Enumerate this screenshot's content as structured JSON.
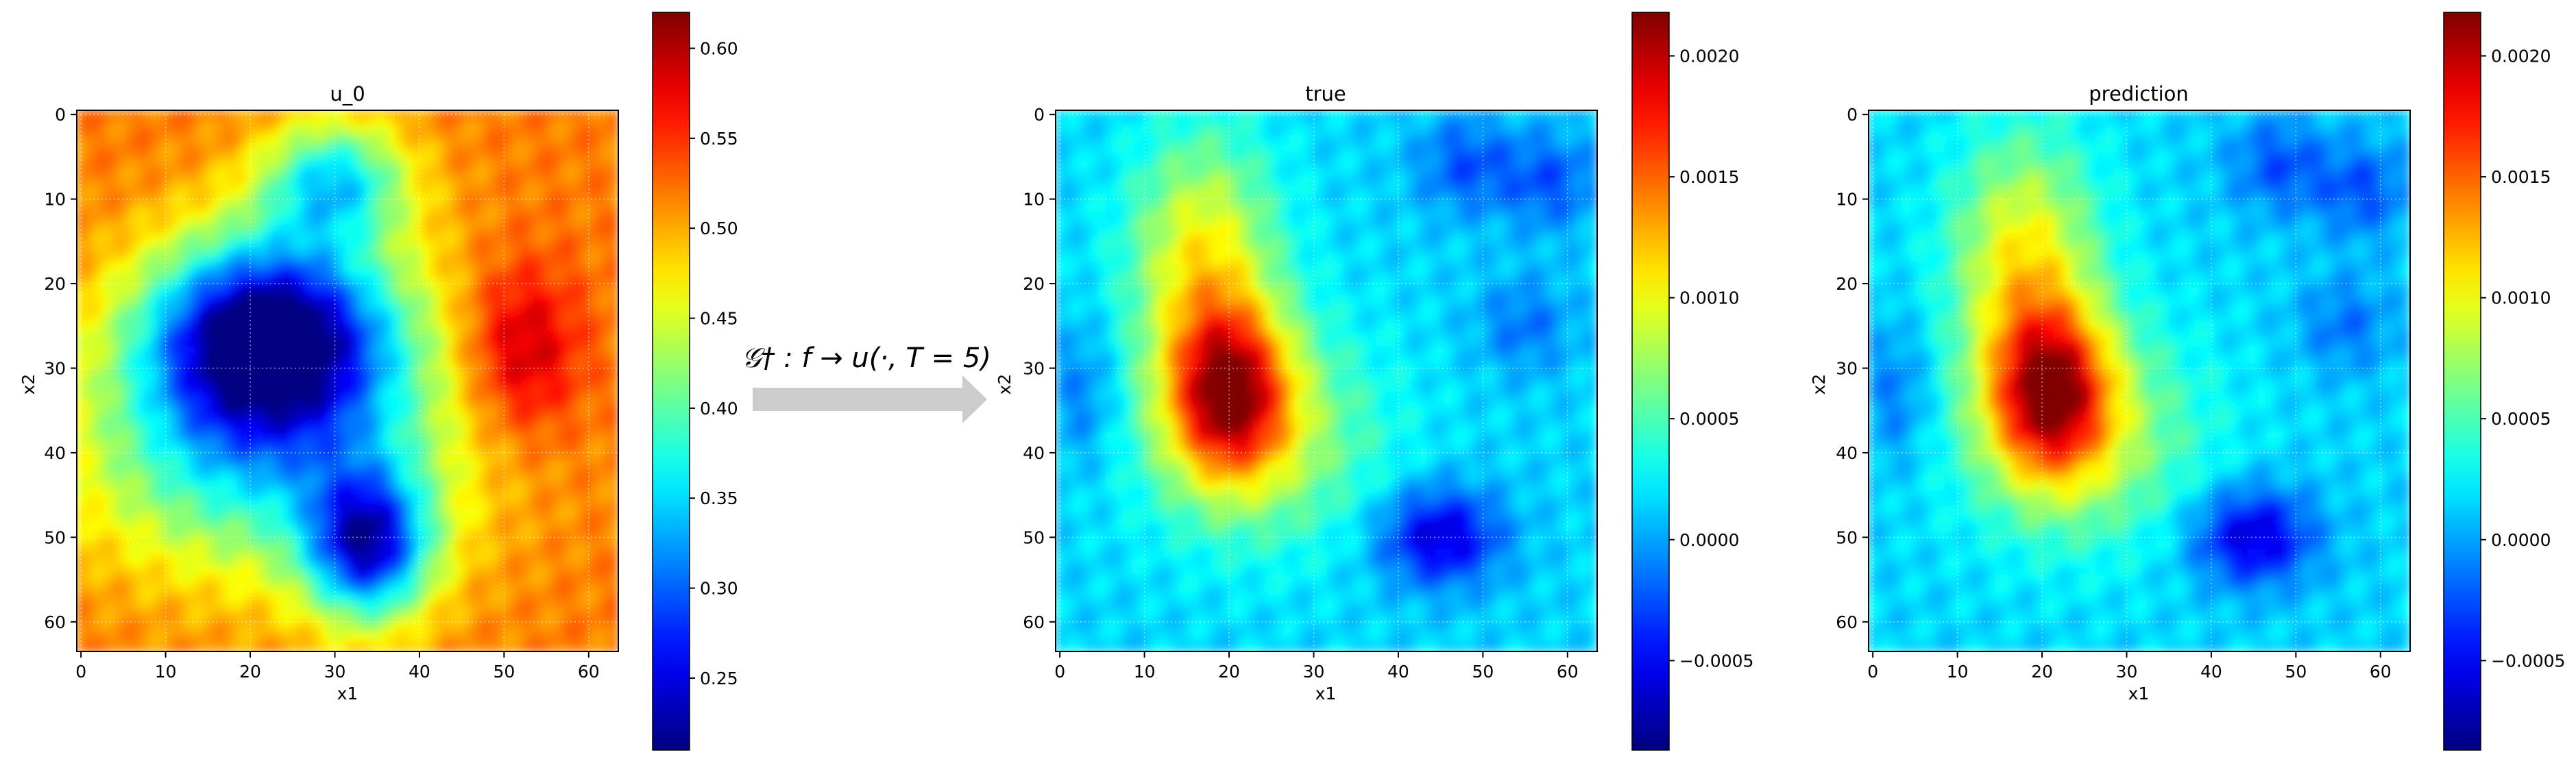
{
  "colormap": "jet",
  "grid": true,
  "arrow_color": "#cccccc",
  "operator_label": "𝒢† : f → u(·, T = 5)",
  "chart_data": [
    {
      "type": "heatmap",
      "title": "u_0",
      "xlabel": "x1",
      "ylabel": "x2",
      "grid_size": 64,
      "xticks": [
        "0",
        "10",
        "20",
        "30",
        "40",
        "50",
        "60"
      ],
      "yticks": [
        "0",
        "10",
        "20",
        "30",
        "40",
        "50",
        "60"
      ],
      "vmin": 0.21,
      "vmax": 0.62,
      "colorbar_ticks": [
        "0.25",
        "0.30",
        "0.35",
        "0.40",
        "0.45",
        "0.50",
        "0.55",
        "0.60"
      ],
      "colorbar_tick_values": [
        0.25,
        0.3,
        0.35,
        0.4,
        0.45,
        0.5,
        0.55,
        0.6
      ],
      "background": 0.52,
      "features": [
        {
          "cx": 22,
          "cy": 26,
          "sx": 10,
          "sy": 8,
          "amp": -0.3
        },
        {
          "cx": 34,
          "cy": 51,
          "sx": 5,
          "sy": 6,
          "amp": -0.24
        },
        {
          "cx": 30,
          "cy": 8,
          "sx": 6,
          "sy": 5,
          "amp": -0.16
        },
        {
          "cx": 18,
          "cy": 40,
          "sx": 14,
          "sy": 10,
          "amp": -0.12
        },
        {
          "cx": 52,
          "cy": 28,
          "sx": 5,
          "sy": 7,
          "amp": 0.09
        },
        {
          "cx": 32,
          "cy": 36,
          "sx": 14,
          "sy": 14,
          "amp": -0.06
        }
      ]
    },
    {
      "type": "heatmap",
      "title": "true",
      "xlabel": "x1",
      "ylabel": "x2",
      "grid_size": 64,
      "xticks": [
        "0",
        "10",
        "20",
        "30",
        "40",
        "50",
        "60"
      ],
      "yticks": [
        "0",
        "10",
        "20",
        "30",
        "40",
        "50",
        "60"
      ],
      "vmin": -0.00087,
      "vmax": 0.00218,
      "colorbar_ticks": [
        "−0.0005",
        "0.0000",
        "0.0005",
        "0.0010",
        "0.0015",
        "0.0020"
      ],
      "colorbar_tick_values": [
        -0.0005,
        0.0,
        0.0005,
        0.001,
        0.0015,
        0.002
      ],
      "background": 0.00015,
      "features": [
        {
          "cx": 20,
          "cy": 33,
          "sx": 5,
          "sy": 7,
          "amp": 0.0016
        },
        {
          "cx": 17,
          "cy": 17,
          "sx": 6,
          "sy": 10,
          "amp": 0.0009
        },
        {
          "cx": 24,
          "cy": 38,
          "sx": 10,
          "sy": 9,
          "amp": 0.0006
        },
        {
          "cx": 45,
          "cy": 50,
          "sx": 5,
          "sy": 4,
          "amp": -0.0008
        },
        {
          "cx": 48,
          "cy": 6,
          "sx": 4,
          "sy": 4,
          "amp": -0.0004
        },
        {
          "cx": 58,
          "cy": 8,
          "sx": 4,
          "sy": 4,
          "amp": -0.0004
        },
        {
          "cx": 55,
          "cy": 25,
          "sx": 4,
          "sy": 4,
          "amp": -0.0003
        },
        {
          "cx": 3,
          "cy": 33,
          "sx": 3,
          "sy": 6,
          "amp": -0.0003
        }
      ]
    },
    {
      "type": "heatmap",
      "title": "prediction",
      "xlabel": "x1",
      "ylabel": "x2",
      "grid_size": 64,
      "xticks": [
        "0",
        "10",
        "20",
        "30",
        "40",
        "50",
        "60"
      ],
      "yticks": [
        "0",
        "10",
        "20",
        "30",
        "40",
        "50",
        "60"
      ],
      "vmin": -0.00087,
      "vmax": 0.00218,
      "colorbar_ticks": [
        "−0.0005",
        "0.0000",
        "0.0005",
        "0.0010",
        "0.0015",
        "0.0020"
      ],
      "colorbar_tick_values": [
        -0.0005,
        0.0,
        0.0005,
        0.001,
        0.0015,
        0.002
      ],
      "background": 0.00015,
      "features": [
        {
          "cx": 21,
          "cy": 33,
          "sx": 5,
          "sy": 7,
          "amp": 0.0016
        },
        {
          "cx": 18,
          "cy": 17,
          "sx": 6,
          "sy": 10,
          "amp": 0.0009
        },
        {
          "cx": 25,
          "cy": 38,
          "sx": 10,
          "sy": 9,
          "amp": 0.0006
        },
        {
          "cx": 45,
          "cy": 50,
          "sx": 5,
          "sy": 4,
          "amp": -0.0008
        },
        {
          "cx": 48,
          "cy": 6,
          "sx": 4,
          "sy": 4,
          "amp": -0.0004
        },
        {
          "cx": 58,
          "cy": 9,
          "sx": 4,
          "sy": 4,
          "amp": -0.0004
        },
        {
          "cx": 56,
          "cy": 25,
          "sx": 4,
          "sy": 4,
          "amp": -0.0003
        },
        {
          "cx": 3,
          "cy": 33,
          "sx": 3,
          "sy": 6,
          "amp": -0.0003
        }
      ]
    }
  ]
}
